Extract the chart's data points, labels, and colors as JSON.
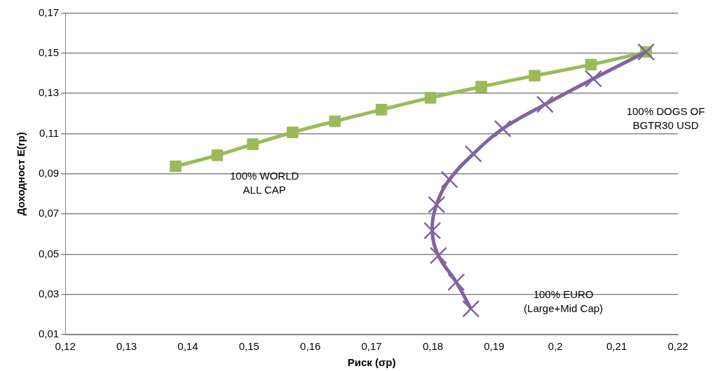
{
  "chart_data": {
    "type": "line",
    "xlabel": "Риск (σp)",
    "ylabel": "Доходност E(rp)",
    "xlim": [
      0.12,
      0.22
    ],
    "xticks": [
      {
        "value": 0.12,
        "label": "0,12"
      },
      {
        "value": 0.13,
        "label": "0,13"
      },
      {
        "value": 0.14,
        "label": "0,14"
      },
      {
        "value": 0.15,
        "label": "0,15"
      },
      {
        "value": 0.16,
        "label": "0,16"
      },
      {
        "value": 0.17,
        "label": "0,17"
      },
      {
        "value": 0.18,
        "label": "0,18"
      },
      {
        "value": 0.19,
        "label": "0,19"
      },
      {
        "value": 0.2,
        "label": "0,2"
      },
      {
        "value": 0.21,
        "label": "0,21"
      },
      {
        "value": 0.22,
        "label": "0,22"
      }
    ],
    "ylim": [
      0.01,
      0.17
    ],
    "yticks": [
      {
        "value": 0.01,
        "label": "0,01"
      },
      {
        "value": 0.03,
        "label": "0,03"
      },
      {
        "value": 0.05,
        "label": "0,05"
      },
      {
        "value": 0.07,
        "label": "0,07"
      },
      {
        "value": 0.09,
        "label": "0,09"
      },
      {
        "value": 0.11,
        "label": "0,11"
      },
      {
        "value": 0.13,
        "label": "0,13"
      },
      {
        "value": 0.15,
        "label": "0,15"
      },
      {
        "value": 0.17,
        "label": "0,17"
      }
    ],
    "grid": "y",
    "legend": false,
    "series": [
      {
        "color": "#9bbb59",
        "marker": "square",
        "x": [
          0.138,
          0.1448,
          0.1506,
          0.1571,
          0.164,
          0.1716,
          0.1796,
          0.1879,
          0.1966,
          0.2058,
          0.2148
        ],
        "values": [
          0.0937,
          0.0992,
          0.1047,
          0.1106,
          0.1161,
          0.1219,
          0.1278,
          0.1333,
          0.1388,
          0.1443,
          0.1506
        ]
      },
      {
        "color": "#8064a2",
        "marker": "cross",
        "x": [
          0.2148,
          0.2062,
          0.1983,
          0.1914,
          0.1866,
          0.1827,
          0.1806,
          0.1799,
          0.1809,
          0.1838,
          0.1862
        ],
        "values": [
          0.1506,
          0.1373,
          0.1245,
          0.1124,
          0.0999,
          0.0871,
          0.0746,
          0.0617,
          0.0493,
          0.0361,
          0.0228
        ]
      }
    ],
    "annotations": [
      "100% WORLD\nALL CAP",
      "100% DOGS OF\nBGTR30 USD",
      "100% EURO\n(Large+Mid Cap)"
    ]
  }
}
